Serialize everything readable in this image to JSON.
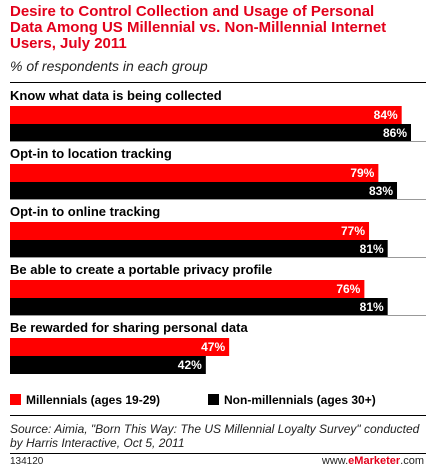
{
  "title_lines": [
    "Desire to Control Collection and Usage of Personal",
    "Data Among US Millennial vs. Non-Millennial Internet",
    "Users, July 2011"
  ],
  "subtitle": "% of respondents in each group",
  "colors": {
    "millennials": "#ff0000",
    "non_millennials": "#000000",
    "title": "#e2001a"
  },
  "chart_data": {
    "type": "bar",
    "orientation": "horizontal",
    "title": "Desire to Control Collection and Usage of Personal Data Among US Millennial vs. Non-Millennial Internet Users, July 2011",
    "subtitle": "% of respondents in each group",
    "categories": [
      "Know what data is being collected",
      "Opt-in to location tracking",
      "Opt-in to online tracking",
      "Be able to create a portable privacy profile",
      "Be rewarded for sharing personal data"
    ],
    "series": [
      {
        "name": "Millennials (ages 19-29)",
        "values": [
          84,
          79,
          77,
          76,
          47
        ],
        "labels": [
          "84%",
          "79%",
          "77%",
          "76%",
          "47%"
        ]
      },
      {
        "name": "Non-millennials (ages 30+)",
        "values": [
          86,
          83,
          81,
          81,
          42
        ],
        "labels": [
          "86%",
          "83%",
          "81%",
          "81%",
          "42%"
        ]
      }
    ],
    "xlim": [
      0,
      86
    ],
    "legend": "bottom"
  },
  "legend": {
    "millennials": "Millennials (ages 19-29)",
    "non_millennials": "Non-millennials (ages 30+)"
  },
  "source": "Source: Aimia, \"Born This Way: The US Millennial Loyalty Survey\" conducted by Harris Interactive, Oct 5, 2011",
  "footer": {
    "id": "134120",
    "brand_prefix": "www.",
    "brand_name": "eMarketer",
    "brand_suffix": ".com"
  }
}
